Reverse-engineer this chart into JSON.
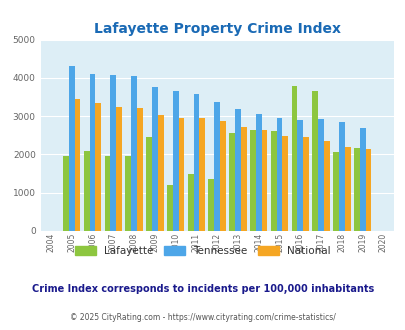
{
  "title": "Lafayette Property Crime Index",
  "years": [
    2004,
    2005,
    2006,
    2007,
    2008,
    2009,
    2010,
    2011,
    2012,
    2013,
    2014,
    2015,
    2016,
    2017,
    2018,
    2019,
    2020
  ],
  "lafayette": [
    null,
    1970,
    2100,
    1970,
    1970,
    2450,
    1200,
    1480,
    1360,
    2570,
    2650,
    2600,
    3800,
    3650,
    2060,
    2160,
    null
  ],
  "tennessee": [
    null,
    4320,
    4100,
    4080,
    4040,
    3760,
    3650,
    3570,
    3380,
    3190,
    3060,
    2950,
    2890,
    2930,
    2840,
    2680,
    null
  ],
  "national": [
    null,
    3460,
    3340,
    3250,
    3210,
    3040,
    2960,
    2950,
    2870,
    2720,
    2650,
    2490,
    2450,
    2350,
    2200,
    2130,
    null
  ],
  "lafayette_color": "#8dc63f",
  "tennessee_color": "#4da6e8",
  "national_color": "#f5a623",
  "bg_color": "#ddeef6",
  "ylim": [
    0,
    5000
  ],
  "yticks": [
    0,
    1000,
    2000,
    3000,
    4000,
    5000
  ],
  "title_color": "#1a6ab5",
  "subtitle": "Crime Index corresponds to incidents per 100,000 inhabitants",
  "footer": "© 2025 CityRating.com - https://www.cityrating.com/crime-statistics/",
  "bar_width": 0.28,
  "legend_labels": [
    "Lafayette",
    "Tennessee",
    "National"
  ],
  "subtitle_color": "#1a1a8c",
  "footer_color": "#555555",
  "footer_link_color": "#1a6ab5"
}
